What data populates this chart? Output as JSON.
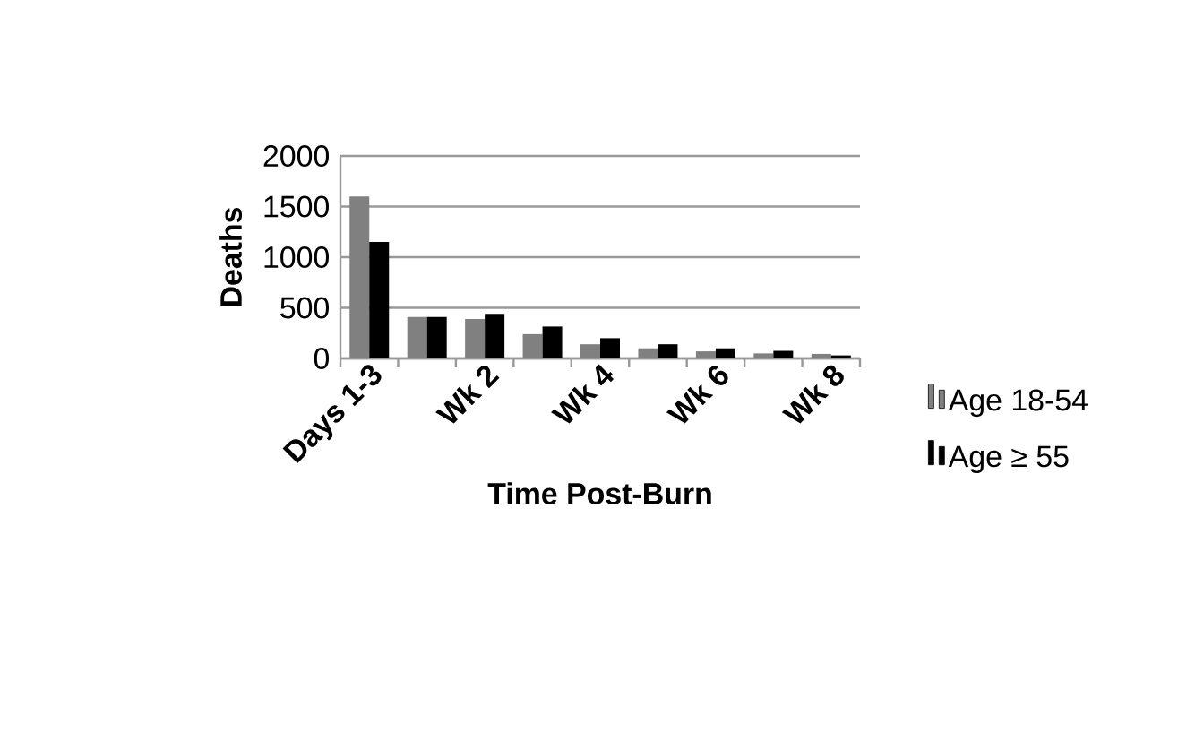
{
  "chart_data": {
    "type": "bar",
    "xlabel": "Time Post-Burn",
    "ylabel": "Deaths",
    "categories": [
      "Days 1-3",
      null,
      "Wk 2",
      null,
      "Wk 4",
      null,
      "Wk 6",
      null,
      "Wk 8"
    ],
    "series": [
      {
        "name": "Age 18-54",
        "color": "#808080",
        "values": [
          1600,
          410,
          390,
          240,
          140,
          100,
          70,
          50,
          45
        ]
      },
      {
        "name": "Age ≥ 55",
        "color": "#000000",
        "values": [
          1150,
          410,
          440,
          315,
          200,
          140,
          100,
          75,
          30
        ]
      }
    ],
    "ylim": [
      0,
      2000
    ],
    "yticks": [
      0,
      500,
      1000,
      1500,
      2000
    ],
    "grid": "y",
    "legend": "right"
  }
}
